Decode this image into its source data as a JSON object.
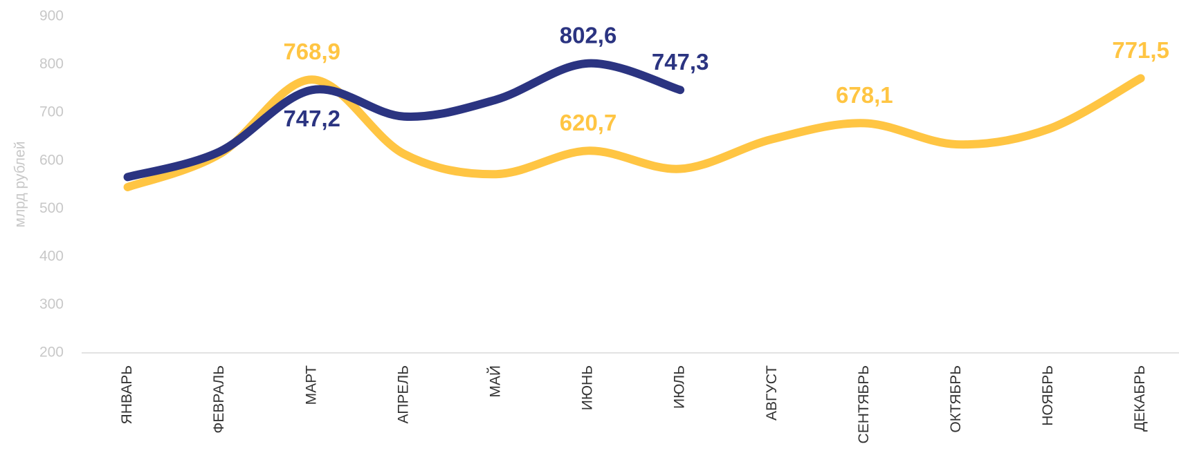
{
  "chart_data": {
    "type": "line",
    "ylabel": "млрд рублей",
    "categories": [
      "ЯНВАРЬ",
      "ФЕВРАЛЬ",
      "МАРТ",
      "АПРЕЛЬ",
      "МАЙ",
      "ИЮНЬ",
      "ИЮЛЬ",
      "АВГУСТ",
      "СЕНТЯБРЬ",
      "ОКТЯБРЬ",
      "НОЯБРЬ",
      "ДЕКАБРЬ"
    ],
    "series": [
      {
        "color": "#FFC543",
        "values": [
          545,
          614,
          768.9,
          614,
          572,
          620.7,
          583,
          645,
          678.1,
          634,
          666,
          771.5
        ],
        "value_labels": [
          null,
          null,
          "768,9",
          null,
          null,
          "620,7",
          null,
          null,
          "678,1",
          null,
          null,
          "771,5"
        ]
      },
      {
        "color": "#2B3481",
        "values": [
          566,
          619,
          747.2,
          692,
          727,
          802.6,
          747.3,
          null,
          null,
          null,
          null,
          null
        ],
        "value_labels": [
          null,
          null,
          "747,2",
          null,
          null,
          "802,6",
          "747,3",
          null,
          null,
          null,
          null,
          null
        ]
      }
    ],
    "ylim": [
      200,
      900
    ],
    "yticks": [
      200,
      300,
      400,
      500,
      600,
      700,
      800,
      900
    ],
    "grid": false
  }
}
